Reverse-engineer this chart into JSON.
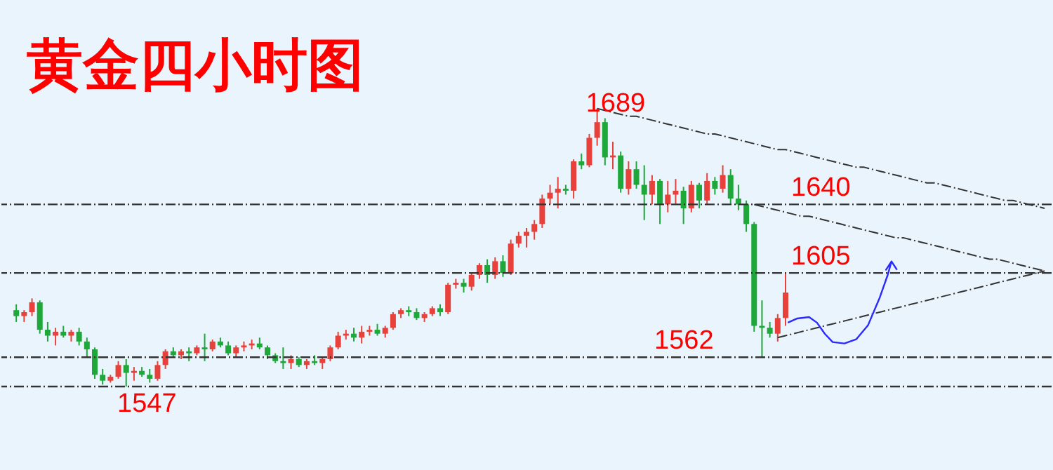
{
  "chart_data": {
    "type": "candlestick",
    "title": "黄金四小时图",
    "categories": [
      null,
      null,
      null,
      null,
      null,
      null,
      null,
      null,
      null,
      null,
      null,
      null,
      null,
      null,
      null,
      null,
      null,
      null,
      null,
      null,
      null,
      null,
      null,
      null,
      null,
      null,
      null,
      null,
      null,
      null,
      null,
      null,
      null,
      null,
      null,
      null,
      null,
      null,
      null,
      null,
      null,
      null,
      null,
      null,
      null,
      null,
      null,
      null,
      null,
      null,
      null,
      null,
      null,
      null,
      null,
      null,
      null,
      null,
      null,
      null,
      null,
      null,
      null,
      null,
      null,
      null,
      null,
      null,
      null,
      null,
      null,
      null,
      null,
      null,
      null,
      null,
      null,
      null,
      null,
      null,
      null,
      null,
      null,
      null,
      null,
      null,
      null,
      null,
      null,
      null,
      null,
      null,
      null,
      null,
      null,
      null,
      null,
      null,
      null,
      null,
      null,
      null,
      null,
      null,
      null,
      null,
      null,
      null,
      null,
      null,
      null,
      null,
      null,
      null,
      null,
      null,
      null,
      null,
      null,
      null,
      null,
      null,
      null,
      null,
      null,
      null,
      null,
      null,
      null,
      null,
      null,
      null
    ],
    "ohlc": [
      [
        1586,
        1589,
        1580,
        1583
      ],
      [
        1583,
        1586,
        1580,
        1585
      ],
      [
        1585,
        1592,
        1583,
        1590
      ],
      [
        1590,
        1591,
        1574,
        1576
      ],
      [
        1576,
        1580,
        1570,
        1573
      ],
      [
        1573,
        1577,
        1568,
        1575
      ],
      [
        1575,
        1578,
        1572,
        1573
      ],
      [
        1573,
        1576,
        1570,
        1575
      ],
      [
        1575,
        1577,
        1568,
        1570
      ],
      [
        1570,
        1572,
        1562,
        1566
      ],
      [
        1566,
        1567,
        1551,
        1553
      ],
      [
        1553,
        1556,
        1548,
        1550
      ],
      [
        1550,
        1553,
        1549,
        1552
      ],
      [
        1552,
        1560,
        1551,
        1558
      ],
      [
        1558,
        1561,
        1547,
        1554
      ],
      [
        1554,
        1557,
        1550,
        1555
      ],
      [
        1555,
        1557,
        1552,
        1553
      ],
      [
        1553,
        1556,
        1549,
        1551
      ],
      [
        1551,
        1560,
        1550,
        1558
      ],
      [
        1558,
        1566,
        1556,
        1565
      ],
      [
        1565,
        1567,
        1562,
        1563
      ],
      [
        1563,
        1566,
        1561,
        1565
      ],
      [
        1565,
        1567,
        1560,
        1564
      ],
      [
        1564,
        1568,
        1563,
        1567
      ],
      [
        1567,
        1574,
        1560,
        1566
      ],
      [
        1566,
        1571,
        1565,
        1570
      ],
      [
        1570,
        1572,
        1567,
        1568
      ],
      [
        1568,
        1570,
        1563,
        1564
      ],
      [
        1564,
        1568,
        1562,
        1567
      ],
      [
        1567,
        1570,
        1565,
        1568
      ],
      [
        1568,
        1571,
        1566,
        1569
      ],
      [
        1569,
        1572,
        1566,
        1567
      ],
      [
        1567,
        1568,
        1561,
        1563
      ],
      [
        1563,
        1564,
        1559,
        1560
      ],
      [
        1560,
        1567,
        1556,
        1559
      ],
      [
        1559,
        1563,
        1556,
        1561
      ],
      [
        1561,
        1562,
        1557,
        1558
      ],
      [
        1558,
        1561,
        1556,
        1560
      ],
      [
        1560,
        1563,
        1558,
        1559
      ],
      [
        1559,
        1562,
        1556,
        1561
      ],
      [
        1561,
        1568,
        1560,
        1567
      ],
      [
        1567,
        1575,
        1566,
        1573
      ],
      [
        1573,
        1576,
        1571,
        1574
      ],
      [
        1574,
        1577,
        1570,
        1572
      ],
      [
        1572,
        1578,
        1569,
        1575
      ],
      [
        1575,
        1578,
        1573,
        1576
      ],
      [
        1576,
        1579,
        1573,
        1574
      ],
      [
        1574,
        1578,
        1572,
        1577
      ],
      [
        1577,
        1585,
        1576,
        1584
      ],
      [
        1584,
        1587,
        1582,
        1586
      ],
      [
        1586,
        1588,
        1583,
        1585
      ],
      [
        1585,
        1587,
        1581,
        1582
      ],
      [
        1582,
        1585,
        1580,
        1584
      ],
      [
        1584,
        1588,
        1583,
        1587
      ],
      [
        1587,
        1589,
        1583,
        1585
      ],
      [
        1585,
        1600,
        1584,
        1599
      ],
      [
        1599,
        1602,
        1597,
        1600
      ],
      [
        1600,
        1602,
        1595,
        1598
      ],
      [
        1598,
        1605,
        1596,
        1604
      ],
      [
        1604,
        1610,
        1602,
        1609
      ],
      [
        1609,
        1612,
        1600,
        1604
      ],
      [
        1604,
        1613,
        1602,
        1611
      ],
      [
        1611,
        1614,
        1603,
        1605
      ],
      [
        1605,
        1622,
        1604,
        1620
      ],
      [
        1620,
        1626,
        1618,
        1624
      ],
      [
        1624,
        1628,
        1618,
        1626
      ],
      [
        1626,
        1632,
        1622,
        1630
      ],
      [
        1630,
        1645,
        1628,
        1643
      ],
      [
        1643,
        1650,
        1640,
        1646
      ],
      [
        1646,
        1654,
        1638,
        1648
      ],
      [
        1648,
        1650,
        1645,
        1647
      ],
      [
        1647,
        1663,
        1643,
        1662
      ],
      [
        1662,
        1666,
        1658,
        1660
      ],
      [
        1660,
        1676,
        1659,
        1674
      ],
      [
        1674,
        1689,
        1670,
        1682
      ],
      [
        1682,
        1684,
        1660,
        1664
      ],
      [
        1664,
        1672,
        1658,
        1665
      ],
      [
        1665,
        1667,
        1646,
        1648
      ],
      [
        1648,
        1662,
        1645,
        1658
      ],
      [
        1658,
        1662,
        1648,
        1650
      ],
      [
        1650,
        1660,
        1632,
        1645
      ],
      [
        1645,
        1655,
        1640,
        1652
      ],
      [
        1652,
        1653,
        1630,
        1640
      ],
      [
        1640,
        1652,
        1636,
        1645
      ],
      [
        1645,
        1653,
        1640,
        1647
      ],
      [
        1647,
        1649,
        1630,
        1638
      ],
      [
        1638,
        1652,
        1636,
        1650
      ],
      [
        1650,
        1651,
        1638,
        1642
      ],
      [
        1642,
        1656,
        1640,
        1652
      ],
      [
        1652,
        1654,
        1645,
        1648
      ],
      [
        1648,
        1660,
        1646,
        1655
      ],
      [
        1655,
        1658,
        1640,
        1643
      ],
      [
        1643,
        1650,
        1637,
        1640
      ],
      [
        1640,
        1642,
        1626,
        1630
      ],
      [
        1630,
        1631,
        1575,
        1578
      ],
      [
        1578,
        1591,
        1562,
        1577
      ],
      [
        1577,
        1580,
        1572,
        1574
      ],
      [
        1574,
        1584,
        1570,
        1582
      ],
      [
        1582,
        1605,
        1578,
        1595
      ],
      null,
      null,
      null,
      null,
      null,
      null,
      null,
      null,
      null,
      null,
      null,
      null,
      null,
      null,
      null,
      null,
      null,
      null,
      null,
      null,
      null,
      null,
      null,
      null,
      null,
      null,
      null,
      null,
      null,
      null,
      null,
      null,
      null
    ],
    "series": [
      {
        "type": "line",
        "values": [
          null,
          null,
          null,
          null,
          null,
          null,
          null,
          null,
          null,
          null,
          null,
          null,
          null,
          null,
          null,
          null,
          null,
          null,
          null,
          null,
          null,
          null,
          null,
          null,
          null,
          null,
          null,
          null,
          null,
          null,
          null,
          null,
          null,
          null,
          null,
          null,
          null,
          null,
          null,
          null,
          null,
          null,
          null,
          null,
          null,
          null,
          null,
          null,
          null,
          null,
          null,
          null,
          null,
          null,
          null,
          null,
          null,
          null,
          null,
          null,
          null,
          null,
          null,
          null,
          null,
          null,
          null,
          null,
          null,
          null,
          null,
          null,
          null,
          null,
          1689,
          1688,
          1687,
          1686,
          1685,
          1685,
          1684,
          1683,
          1682,
          1681,
          1680,
          1679,
          1678,
          1677,
          1676,
          1676,
          1675,
          1674,
          1673,
          1672,
          1671,
          1670,
          1669,
          1668,
          1668,
          1667,
          1666,
          1665,
          1664,
          1663,
          1662,
          1661,
          1660,
          1659,
          1659,
          1658,
          1657,
          1656,
          1655,
          1654,
          1653,
          1652,
          1651,
          1651,
          1650,
          1649,
          1648,
          1647,
          1646,
          1645,
          1644,
          1643,
          1642,
          1642,
          1641,
          1640,
          1639,
          1638
        ],
        "color": "#333333",
        "line_style": "dashed"
      },
      {
        "type": "line",
        "values": [
          null,
          null,
          null,
          null,
          null,
          null,
          null,
          null,
          null,
          null,
          null,
          null,
          null,
          null,
          null,
          null,
          null,
          null,
          null,
          null,
          null,
          null,
          null,
          null,
          null,
          null,
          null,
          null,
          null,
          null,
          null,
          null,
          null,
          null,
          null,
          null,
          null,
          null,
          null,
          null,
          null,
          null,
          null,
          null,
          null,
          null,
          null,
          null,
          null,
          null,
          null,
          null,
          null,
          null,
          null,
          null,
          null,
          null,
          null,
          null,
          null,
          null,
          null,
          null,
          null,
          null,
          null,
          null,
          null,
          null,
          null,
          null,
          null,
          null,
          null,
          null,
          null,
          null,
          null,
          null,
          null,
          null,
          null,
          null,
          null,
          null,
          null,
          null,
          null,
          null,
          null,
          null,
          null,
          null,
          1640,
          1639,
          1638,
          1637,
          1636,
          1635,
          1634,
          1634,
          1633,
          1632,
          1631,
          1630,
          1629,
          1628,
          1627,
          1626,
          1625,
          1624,
          1623,
          1623,
          1622,
          1621,
          1620,
          1619,
          1618,
          1617,
          1616,
          1615,
          1614,
          1613,
          1612,
          1612,
          1611,
          1610,
          1609,
          1608,
          1607,
          1606
        ],
        "color": "#333333",
        "line_style": "dashed"
      },
      {
        "type": "line",
        "values": [
          null,
          null,
          null,
          null,
          null,
          null,
          null,
          null,
          null,
          null,
          null,
          null,
          null,
          null,
          null,
          null,
          null,
          null,
          null,
          null,
          null,
          null,
          null,
          null,
          null,
          null,
          null,
          null,
          null,
          null,
          null,
          null,
          null,
          null,
          null,
          null,
          null,
          null,
          null,
          null,
          null,
          null,
          null,
          null,
          null,
          null,
          null,
          null,
          null,
          null,
          null,
          null,
          null,
          null,
          null,
          null,
          null,
          null,
          null,
          null,
          null,
          null,
          null,
          null,
          null,
          null,
          null,
          null,
          null,
          null,
          null,
          null,
          null,
          null,
          null,
          null,
          null,
          null,
          null,
          null,
          null,
          null,
          null,
          null,
          null,
          null,
          null,
          null,
          null,
          null,
          null,
          null,
          null,
          null,
          null,
          null,
          null,
          1572,
          1573,
          1574,
          1575,
          1576,
          1577,
          1578,
          1579,
          1580,
          1581,
          1582,
          1583,
          1584,
          1585,
          1586,
          1587,
          1588,
          1589,
          1590,
          1591,
          1592,
          1593,
          1594,
          1595,
          1596,
          1597,
          1598,
          1599,
          1600,
          1601,
          1602,
          1603,
          1604,
          1605,
          1606
        ],
        "color": "#333333",
        "line_style": "dashed"
      }
    ],
    "ref_lines": [
      {
        "axis": "y",
        "value": 1640,
        "label": "1640",
        "color": "#333333",
        "line_style": "dashed"
      },
      {
        "axis": "y",
        "value": 1605,
        "label": "1605",
        "color": "#333333",
        "line_style": "dashed"
      },
      {
        "axis": "y",
        "value": 1562,
        "label": "1562",
        "color": "#333333",
        "line_style": "dashed"
      },
      {
        "axis": "y",
        "value": 1547,
        "label": "1547",
        "color": "#333333",
        "line_style": "dashed"
      }
    ],
    "annotations": [
      {
        "text": "1689",
        "y": 1689
      }
    ]
  }
}
